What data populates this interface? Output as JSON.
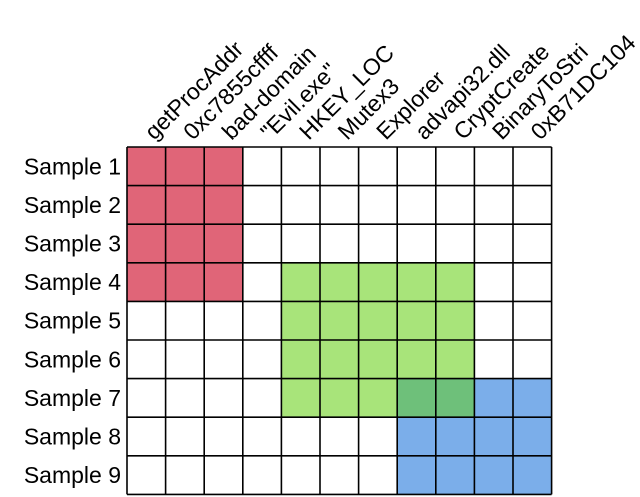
{
  "rows": [
    "Sample 1",
    "Sample 2",
    "Sample 3",
    "Sample 4",
    "Sample 5",
    "Sample 6",
    "Sample 7",
    "Sample 8",
    "Sample 9"
  ],
  "columns": [
    "getProcAddr",
    "0xc7855cffff",
    "bad-domain",
    "\"Evil.exe\"",
    "HKEY_LOC",
    "Mutex3",
    "Explorer",
    "advapi32.dll",
    "CryptCreate",
    "BinaryToStri",
    "0xB71DC104"
  ],
  "colors": {
    "red": "#e06578",
    "green": "#a8e47a",
    "overlap": "#6ec07a",
    "blue": "#7baeea",
    "empty": "#ffffff",
    "grid": "#000000"
  },
  "cells": [
    [
      "red",
      "red",
      "red",
      "empty",
      "empty",
      "empty",
      "empty",
      "empty",
      "empty",
      "empty",
      "empty"
    ],
    [
      "red",
      "red",
      "red",
      "empty",
      "empty",
      "empty",
      "empty",
      "empty",
      "empty",
      "empty",
      "empty"
    ],
    [
      "red",
      "red",
      "red",
      "empty",
      "empty",
      "empty",
      "empty",
      "empty",
      "empty",
      "empty",
      "empty"
    ],
    [
      "red",
      "red",
      "red",
      "empty",
      "green",
      "green",
      "green",
      "green",
      "green",
      "empty",
      "empty"
    ],
    [
      "empty",
      "empty",
      "empty",
      "empty",
      "green",
      "green",
      "green",
      "green",
      "green",
      "empty",
      "empty"
    ],
    [
      "empty",
      "empty",
      "empty",
      "empty",
      "green",
      "green",
      "green",
      "green",
      "green",
      "empty",
      "empty"
    ],
    [
      "empty",
      "empty",
      "empty",
      "empty",
      "green",
      "green",
      "green",
      "overlap",
      "overlap",
      "blue",
      "blue"
    ],
    [
      "empty",
      "empty",
      "empty",
      "empty",
      "empty",
      "empty",
      "empty",
      "blue",
      "blue",
      "blue",
      "blue"
    ],
    [
      "empty",
      "empty",
      "empty",
      "empty",
      "empty",
      "empty",
      "empty",
      "blue",
      "blue",
      "blue",
      "blue"
    ]
  ]
}
